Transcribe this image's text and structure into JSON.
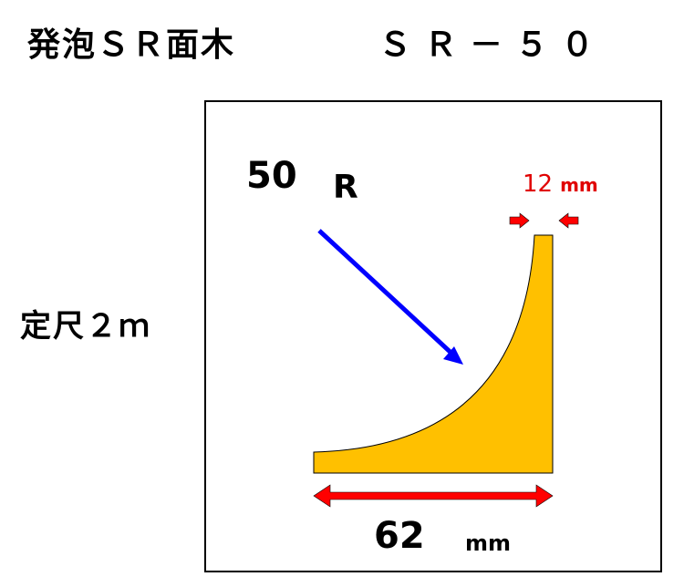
{
  "header": {
    "product_name": "発泡ＳＲ面木",
    "model_code": "ＳＲ－５０"
  },
  "spec": {
    "length_label": "定尺２ｍ"
  },
  "diagram": {
    "radius_value": "50",
    "radius_unit": "R",
    "thickness_value": "12",
    "thickness_unit": "mm",
    "width_value": "62",
    "width_unit": "mm",
    "colors": {
      "profile_fill": "#FFC000",
      "radius_arrow": "#0000FF",
      "dimension_arrow": "#FF0000",
      "dimension_text": "#E00000"
    }
  }
}
